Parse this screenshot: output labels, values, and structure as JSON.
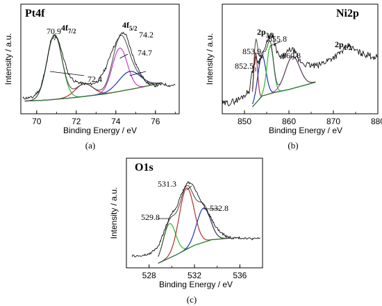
{
  "chart_data": [
    {
      "type": "line",
      "panel_label": "(a)",
      "title": "Pt4f",
      "xlabel": "Binding Energy / eV",
      "ylabel": "Intensity / a.u.",
      "xlim": [
        69.2,
        77.2
      ],
      "xticks": [
        70,
        72,
        74,
        76
      ],
      "ylim": [
        0,
        1
      ],
      "peak_labels": [
        {
          "main": "4f",
          "sub": "7/2",
          "x": 71.0
        },
        {
          "main": "4f",
          "sub": "5/2",
          "x": 74.3
        }
      ],
      "annotations": [
        {
          "text": "70.9",
          "x": 70.9
        },
        {
          "text": "72.4",
          "x": 72.4
        },
        {
          "text": "74.2",
          "x": 74.2
        },
        {
          "text": "74.7",
          "x": 74.7
        }
      ],
      "background": [
        [
          69.4,
          0.08
        ],
        [
          70.5,
          0.09
        ],
        [
          72.0,
          0.12
        ],
        [
          73.5,
          0.16
        ],
        [
          75.0,
          0.22
        ],
        [
          76.3,
          0.28
        ]
      ],
      "components": [
        {
          "color": "#2db82d",
          "center": 70.9,
          "height": 0.72,
          "sigma": 0.38
        },
        {
          "color": "#b03030",
          "center": 72.4,
          "height": 0.14,
          "sigma": 0.45
        },
        {
          "color": "#c040c0",
          "center": 74.2,
          "height": 0.48,
          "sigma": 0.38
        },
        {
          "color": "#2030c0",
          "center": 74.7,
          "height": 0.2,
          "sigma": 0.55
        }
      ],
      "raw": [
        [
          69.3,
          0.11
        ],
        [
          69.8,
          0.12
        ],
        [
          70.2,
          0.22
        ],
        [
          70.5,
          0.5
        ],
        [
          70.7,
          0.74
        ],
        [
          70.9,
          0.8
        ],
        [
          71.1,
          0.76
        ],
        [
          71.3,
          0.6
        ],
        [
          71.6,
          0.38
        ],
        [
          71.9,
          0.3
        ],
        [
          72.2,
          0.28
        ],
        [
          72.5,
          0.27
        ],
        [
          72.8,
          0.27
        ],
        [
          73.1,
          0.3
        ],
        [
          73.5,
          0.45
        ],
        [
          73.8,
          0.64
        ],
        [
          74.1,
          0.76
        ],
        [
          74.3,
          0.84
        ],
        [
          74.5,
          0.82
        ],
        [
          74.8,
          0.62
        ],
        [
          75.0,
          0.5
        ],
        [
          75.3,
          0.36
        ],
        [
          75.6,
          0.28
        ],
        [
          76.0,
          0.25
        ],
        [
          76.4,
          0.27
        ],
        [
          76.7,
          0.25
        ],
        [
          77.0,
          0.26
        ]
      ]
    },
    {
      "type": "line",
      "panel_label": "(b)",
      "title": "Ni2p",
      "xlabel": "Binding Energy / eV",
      "ylabel": "Intensity / a.u.",
      "xlim": [
        845,
        880
      ],
      "xticks": [
        850,
        860,
        870,
        880
      ],
      "ylim": [
        0,
        1
      ],
      "peak_labels": [
        {
          "main": "2p",
          "sub": "3/2",
          "x": 856.0
        },
        {
          "main": "2p",
          "sub": "1/2",
          "x": 873.5
        }
      ],
      "annotations": [
        {
          "text": "852.5",
          "x": 852.5
        },
        {
          "text": "853.9",
          "x": 853.9
        },
        {
          "text": "855.8",
          "x": 855.8
        },
        {
          "text": "860.8",
          "x": 860.8
        }
      ],
      "background": [
        [
          851.8,
          0.03
        ],
        [
          854.0,
          0.15
        ],
        [
          857.0,
          0.19
        ],
        [
          860.0,
          0.22
        ],
        [
          863.0,
          0.26
        ],
        [
          866.0,
          0.3
        ]
      ],
      "components": [
        {
          "color": "#b03030",
          "center": 852.5,
          "height": 0.55,
          "sigma": 0.45
        },
        {
          "color": "#2030c0",
          "center": 853.9,
          "height": 0.45,
          "sigma": 0.9
        },
        {
          "color": "#2db82d",
          "center": 855.8,
          "height": 0.52,
          "sigma": 0.75
        },
        {
          "color": "#c040c0",
          "center": 860.8,
          "height": 0.35,
          "sigma": 1.6
        }
      ],
      "raw": [
        [
          845.0,
          0.06
        ],
        [
          847.0,
          0.08
        ],
        [
          849.0,
          0.12
        ],
        [
          851.0,
          0.2
        ],
        [
          852.0,
          0.48
        ],
        [
          852.6,
          0.56
        ],
        [
          853.2,
          0.52
        ],
        [
          854.0,
          0.6
        ],
        [
          855.0,
          0.72
        ],
        [
          855.8,
          0.82
        ],
        [
          856.5,
          0.78
        ],
        [
          857.3,
          0.62
        ],
        [
          858.2,
          0.56
        ],
        [
          859.3,
          0.6
        ],
        [
          860.3,
          0.66
        ],
        [
          861.2,
          0.64
        ],
        [
          862.2,
          0.54
        ],
        [
          863.5,
          0.5
        ],
        [
          865.0,
          0.48
        ],
        [
          866.5,
          0.48
        ],
        [
          868.0,
          0.52
        ],
        [
          869.5,
          0.56
        ],
        [
          871.0,
          0.6
        ],
        [
          872.5,
          0.66
        ],
        [
          873.5,
          0.7
        ],
        [
          874.5,
          0.66
        ],
        [
          876.0,
          0.62
        ],
        [
          877.5,
          0.6
        ],
        [
          879.0,
          0.58
        ],
        [
          880.0,
          0.57
        ]
      ]
    },
    {
      "type": "line",
      "panel_label": "(c)",
      "title": "O1s",
      "xlabel": "Binding Energy / eV",
      "ylabel": "Intensity / a.u.",
      "xlim": [
        526,
        538
      ],
      "xticks": [
        528,
        532,
        536
      ],
      "ylim": [
        0,
        1
      ],
      "annotations": [
        {
          "text": "529.8",
          "x": 529.8
        },
        {
          "text": "531.3",
          "x": 531.3
        },
        {
          "text": "532.8",
          "x": 532.8
        }
      ],
      "background": [
        [
          528.8,
          0.02
        ],
        [
          530.5,
          0.12
        ],
        [
          532.0,
          0.22
        ],
        [
          533.5,
          0.28
        ],
        [
          535.2,
          0.3
        ]
      ],
      "components": [
        {
          "color": "#2db82d",
          "center": 529.8,
          "height": 0.38,
          "sigma": 0.55
        },
        {
          "color": "#b03030",
          "center": 531.3,
          "height": 0.68,
          "sigma": 0.65
        },
        {
          "color": "#2030c0",
          "center": 532.8,
          "height": 0.38,
          "sigma": 0.6
        }
      ],
      "raw": [
        [
          526.5,
          0.1
        ],
        [
          527.3,
          0.1
        ],
        [
          528.0,
          0.12
        ],
        [
          528.8,
          0.2
        ],
        [
          529.4,
          0.4
        ],
        [
          529.9,
          0.56
        ],
        [
          530.4,
          0.64
        ],
        [
          530.9,
          0.8
        ],
        [
          531.4,
          0.92
        ],
        [
          531.8,
          0.9
        ],
        [
          532.3,
          0.78
        ],
        [
          532.8,
          0.66
        ],
        [
          533.3,
          0.56
        ],
        [
          533.8,
          0.44
        ],
        [
          534.3,
          0.36
        ],
        [
          534.8,
          0.32
        ],
        [
          535.3,
          0.3
        ],
        [
          535.8,
          0.3
        ],
        [
          536.5,
          0.3
        ],
        [
          537.2,
          0.29
        ],
        [
          537.8,
          0.3
        ]
      ]
    }
  ]
}
